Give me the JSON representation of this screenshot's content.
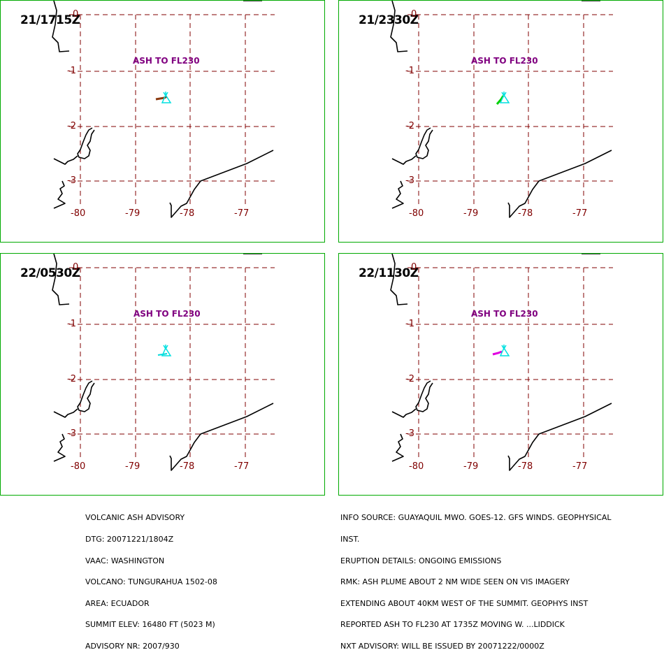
{
  "panels": [
    {
      "time": "21/1715Z",
      "ash_label": "ASH TO FL230",
      "plume_color": "#8b3a0f"
    },
    {
      "time": "21/2330Z",
      "ash_label": "ASH TO FL230",
      "plume_color": "#00d000"
    },
    {
      "time": "22/0530Z",
      "ash_label": "ASH TO FL230",
      "plume_color": "#00d8d8"
    },
    {
      "time": "22/1130Z",
      "ash_label": "ASH TO FL230",
      "plume_color": "#e000e0"
    }
  ],
  "lat_labels": [
    "0",
    "-1",
    "-2",
    "-3"
  ],
  "lon_labels": [
    "-80",
    "-79",
    "-78",
    "-77"
  ],
  "colors": {
    "grid": "#800000",
    "volcano_symbol": "#00e0e0",
    "coastline": "#000000",
    "panel_border": "#00aa00"
  },
  "advisory_left": [
    "VOLCANIC ASH ADVISORY",
    "DTG: 20071221/1804Z",
    "VAAC: WASHINGTON",
    "VOLCANO: TUNGURAHUA 1502-08",
    "AREA: ECUADOR",
    "SUMMIT ELEV: 16480 FT (5023 M)",
    "ADVISORY NR: 2007/930"
  ],
  "advisory_right": [
    "INFO SOURCE: GUAYAQUIL MWO. GOES-12. GFS WINDS. GEOPHYSICAL",
    "INST.",
    "ERUPTION DETAILS: ONGOING EMISSIONS",
    "RMK: ASH PLUME ABOUT 2 NM WIDE SEEN ON VIS IMAGERY",
    "EXTENDING ABOUT 40KM WEST OF THE SUMMIT. GEOPHYS INST",
    "REPORTED ASH TO FL230 AT 1735Z MOVING W. ...LIDDICK",
    "NXT ADVISORY: WILL BE ISSUED BY 20071222/0000Z"
  ]
}
